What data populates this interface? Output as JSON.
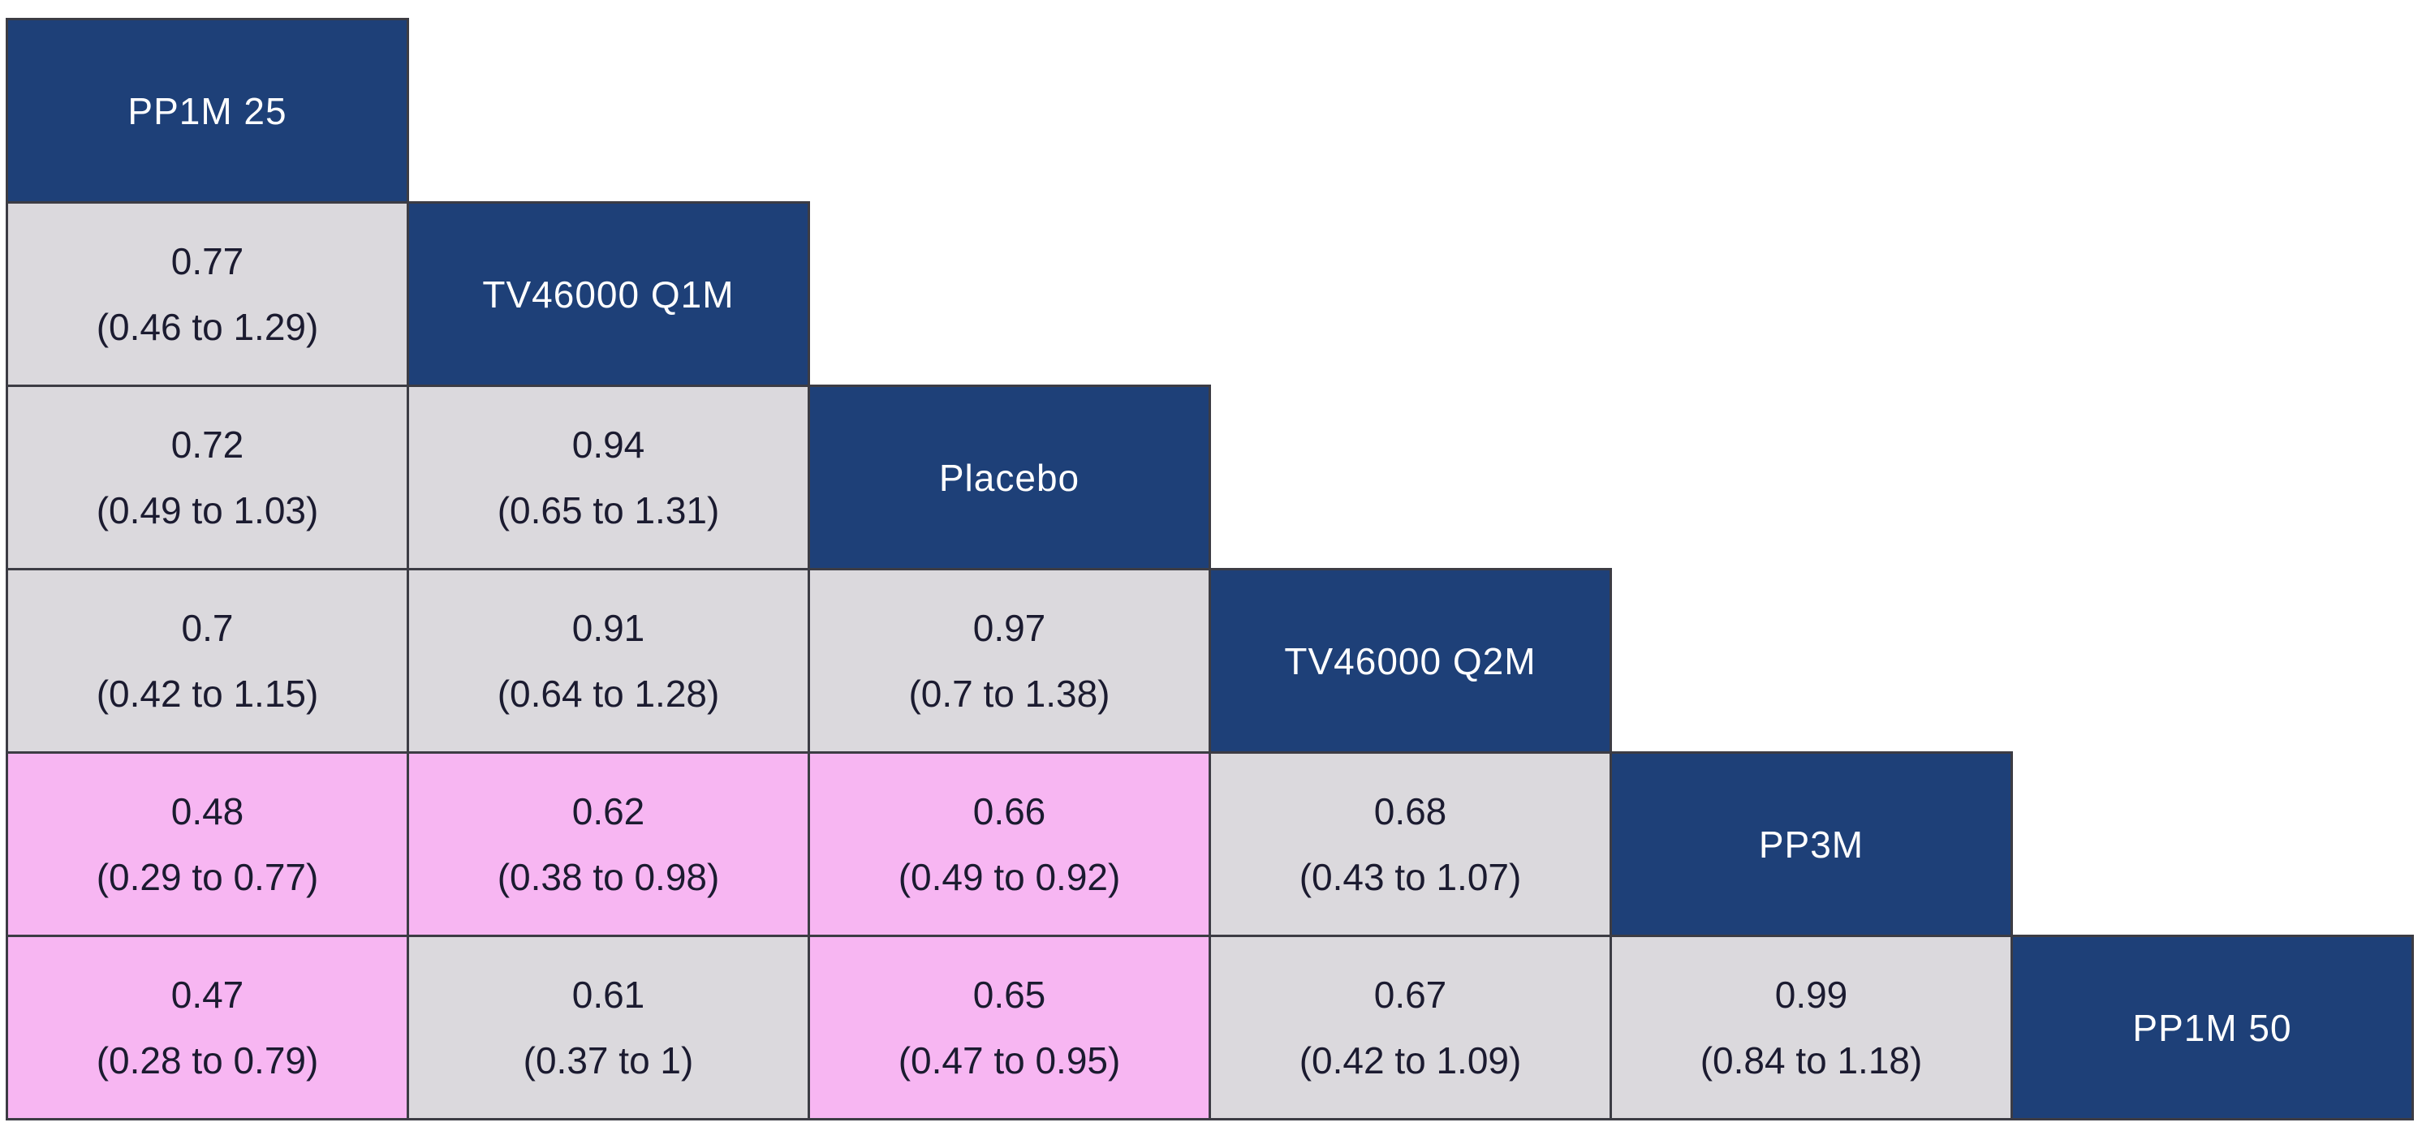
{
  "figure": {
    "description_colors": {
      "header_bg": "#1e4078",
      "header_text": "#ffffff",
      "cell_bg": "#dbd9dd",
      "highlight_bg": "#f7b6f2",
      "border": "#3c3c44",
      "cell_text": "#1b1b30",
      "background": "#ffffff"
    }
  },
  "chart_data": {
    "type": "table",
    "subtype": "league-table-lower-triangle-matrix",
    "treatments": [
      "PP1M 25",
      "TV46000 Q1M",
      "Placebo",
      "TV46000 Q2M",
      "PP3M",
      "PP1M 50"
    ],
    "legend_position": "none",
    "grid": true,
    "rows": [
      {
        "name": "PP1M 25",
        "cells": []
      },
      {
        "name": "TV46000 Q1M",
        "cells": [
          {
            "value": "0.77",
            "ci": "(0.46 to 1.29)",
            "highlighted": false
          }
        ]
      },
      {
        "name": "Placebo",
        "cells": [
          {
            "value": "0.72",
            "ci": "(0.49 to 1.03)",
            "highlighted": false
          },
          {
            "value": "0.94",
            "ci": "(0.65 to 1.31)",
            "highlighted": false
          }
        ]
      },
      {
        "name": "TV46000 Q2M",
        "cells": [
          {
            "value": "0.7",
            "ci": "(0.42 to 1.15)",
            "highlighted": false
          },
          {
            "value": "0.91",
            "ci": "(0.64 to 1.28)",
            "highlighted": false
          },
          {
            "value": "0.97",
            "ci": "(0.7 to 1.38)",
            "highlighted": false
          }
        ]
      },
      {
        "name": "PP3M",
        "cells": [
          {
            "value": "0.48",
            "ci": "(0.29 to 0.77)",
            "highlighted": true
          },
          {
            "value": "0.62",
            "ci": "(0.38 to 0.98)",
            "highlighted": true
          },
          {
            "value": "0.66",
            "ci": "(0.49 to 0.92)",
            "highlighted": true
          },
          {
            "value": "0.68",
            "ci": "(0.43 to 1.07)",
            "highlighted": false
          }
        ]
      },
      {
        "name": "PP1M 50",
        "cells": [
          {
            "value": "0.47",
            "ci": "(0.28 to 0.79)",
            "highlighted": true
          },
          {
            "value": "0.61",
            "ci": "(0.37 to 1)",
            "highlighted": false
          },
          {
            "value": "0.65",
            "ci": "(0.47 to 0.95)",
            "highlighted": true
          },
          {
            "value": "0.67",
            "ci": "(0.42 to 1.09)",
            "highlighted": false
          },
          {
            "value": "0.99",
            "ci": "(0.84 to 1.18)",
            "highlighted": false
          }
        ]
      }
    ]
  }
}
